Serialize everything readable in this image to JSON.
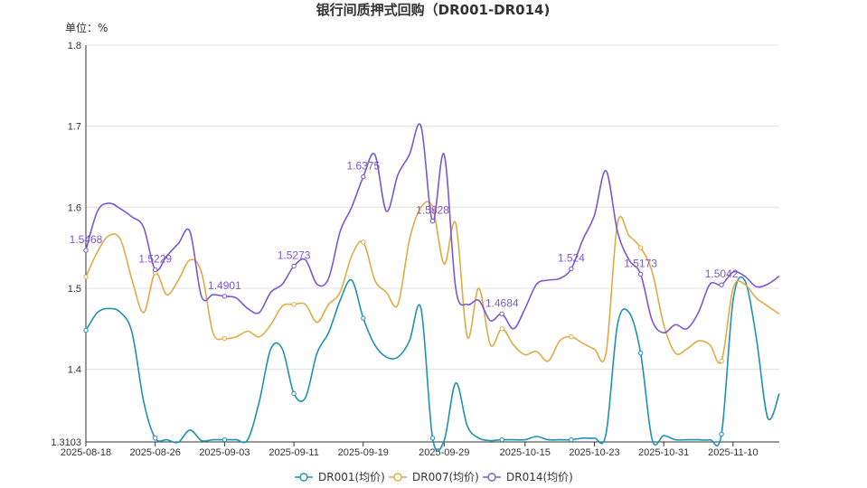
{
  "chart_data": {
    "type": "line",
    "title": "银行间质押式回购（DR001-DR014)",
    "unit_label": "单位：%",
    "ylim": [
      1.3103,
      1.8
    ],
    "y_ticks": [
      "1.3103",
      "1.4",
      "1.5",
      "1.6",
      "1.7",
      "1.8"
    ],
    "y_tick_values": [
      1.3103,
      1.4,
      1.5,
      1.6,
      1.7,
      1.8
    ],
    "grid": true,
    "legend_position": "bottom",
    "x": [
      "2025-08-18",
      "2025-08-19",
      "2025-08-20",
      "2025-08-21",
      "2025-08-22",
      "2025-08-25",
      "2025-08-26",
      "2025-08-27",
      "2025-08-28",
      "2025-08-29",
      "2025-09-01",
      "2025-09-02",
      "2025-09-03",
      "2025-09-04",
      "2025-09-05",
      "2025-09-08",
      "2025-09-09",
      "2025-09-10",
      "2025-09-11",
      "2025-09-12",
      "2025-09-15",
      "2025-09-16",
      "2025-09-17",
      "2025-09-18",
      "2025-09-19",
      "2025-09-22",
      "2025-09-23",
      "2025-09-24",
      "2025-09-25",
      "2025-09-26",
      "2025-09-28",
      "2025-09-29",
      "2025-09-30",
      "2025-10-09",
      "2025-10-10",
      "2025-10-11",
      "2025-10-13",
      "2025-10-14",
      "2025-10-15",
      "2025-10-16",
      "2025-10-17",
      "2025-10-20",
      "2025-10-21",
      "2025-10-22",
      "2025-10-23",
      "2025-10-24",
      "2025-10-27",
      "2025-10-28",
      "2025-10-29",
      "2025-10-30",
      "2025-10-31",
      "2025-11-03",
      "2025-11-04",
      "2025-11-05",
      "2025-11-06",
      "2025-11-07",
      "2025-11-10",
      "2025-11-11",
      "2025-11-12",
      "2025-11-13",
      "2025-11-14"
    ],
    "x_tick_labels": [
      "2025-08-18",
      "2025-08-26",
      "2025-09-03",
      "2025-09-11",
      "2025-09-19",
      "2025-09-29",
      "2025-10-15",
      "2025-10-23",
      "2025-10-31",
      "2025-11-10"
    ],
    "x_tick_index": [
      0,
      6,
      12,
      18,
      24,
      31,
      38,
      44,
      50,
      56
    ],
    "series": [
      {
        "name": "DR001(均价)",
        "color": "#1e91b5",
        "values": [
          1.448,
          1.47,
          1.475,
          1.47,
          1.445,
          1.36,
          1.315,
          1.313,
          1.31,
          1.325,
          1.312,
          1.313,
          1.313,
          1.313,
          1.313,
          1.36,
          1.425,
          1.425,
          1.37,
          1.365,
          1.42,
          1.445,
          1.485,
          1.51,
          1.463,
          1.43,
          1.415,
          1.415,
          1.435,
          1.475,
          1.315,
          1.312,
          1.383,
          1.33,
          1.315,
          1.312,
          1.313,
          1.313,
          1.313,
          1.317,
          1.313,
          1.313,
          1.313,
          1.315,
          1.315,
          1.32,
          1.455,
          1.47,
          1.42,
          1.313,
          1.318,
          1.313,
          1.313,
          1.313,
          1.313,
          1.32,
          1.485,
          1.51,
          1.44,
          1.34,
          1.37
        ]
      },
      {
        "name": "DR007(均价)",
        "color": "#e0aa45",
        "values": [
          1.514,
          1.545,
          1.565,
          1.56,
          1.51,
          1.47,
          1.519,
          1.492,
          1.51,
          1.535,
          1.52,
          1.445,
          1.438,
          1.44,
          1.447,
          1.44,
          1.455,
          1.478,
          1.48,
          1.48,
          1.458,
          1.48,
          1.495,
          1.54,
          1.557,
          1.51,
          1.495,
          1.48,
          1.56,
          1.6,
          1.6,
          1.53,
          1.58,
          1.44,
          1.5,
          1.43,
          1.45,
          1.43,
          1.418,
          1.422,
          1.41,
          1.435,
          1.44,
          1.432,
          1.425,
          1.42,
          1.58,
          1.565,
          1.55,
          1.52,
          1.455,
          1.42,
          1.425,
          1.435,
          1.43,
          1.41,
          1.5,
          1.505,
          1.488,
          1.478,
          1.468
        ]
      },
      {
        "name": "DR014(均价)",
        "color": "#7b57d1",
        "values": [
          1.5468,
          1.595,
          1.605,
          1.598,
          1.588,
          1.575,
          1.5229,
          1.54,
          1.555,
          1.57,
          1.49,
          1.492,
          1.4901,
          1.488,
          1.475,
          1.47,
          1.495,
          1.505,
          1.5273,
          1.535,
          1.505,
          1.512,
          1.57,
          1.6,
          1.6375,
          1.665,
          1.595,
          1.64,
          1.665,
          1.7,
          1.5828,
          1.665,
          1.5,
          1.48,
          1.485,
          1.46,
          1.4684,
          1.45,
          1.475,
          1.505,
          1.51,
          1.512,
          1.524,
          1.56,
          1.59,
          1.645,
          1.57,
          1.535,
          1.5173,
          1.46,
          1.445,
          1.455,
          1.45,
          1.47,
          1.505,
          1.5042,
          1.52,
          1.515,
          1.502,
          1.505,
          1.515
        ]
      }
    ],
    "data_labels": [
      {
        "series": 2,
        "index": 0,
        "text": "1.5468"
      },
      {
        "series": 2,
        "index": 6,
        "text": "1.5229"
      },
      {
        "series": 2,
        "index": 12,
        "text": "1.4901"
      },
      {
        "series": 2,
        "index": 18,
        "text": "1.5273"
      },
      {
        "series": 2,
        "index": 24,
        "text": "1.6375"
      },
      {
        "series": 2,
        "index": 30,
        "text": "1.5828"
      },
      {
        "series": 2,
        "index": 36,
        "text": "1.4684"
      },
      {
        "series": 2,
        "index": 42,
        "text": "1.524"
      },
      {
        "series": 2,
        "index": 48,
        "text": "1.5173"
      },
      {
        "series": 2,
        "index": 55,
        "text": "1.5042"
      }
    ]
  }
}
